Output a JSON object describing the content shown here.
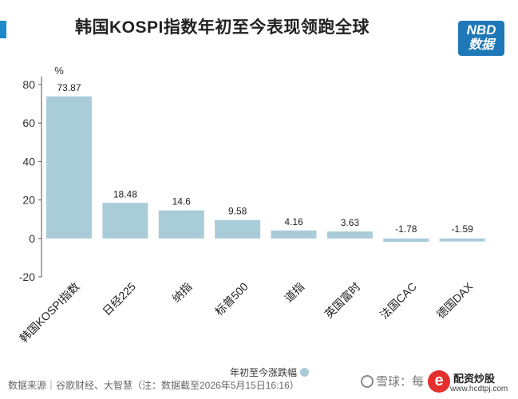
{
  "title": "韩国KOSPI指数年初至今表现领跑全球",
  "logo": {
    "line1": "NBD",
    "line2": "数据"
  },
  "chart_data": {
    "type": "bar",
    "title": "韩国KOSPI指数年初至今表现领跑全球",
    "unit": "%",
    "categories": [
      "韩国KOSPI指数",
      "日经225",
      "纳指",
      "标普500",
      "道指",
      "英国富时",
      "法国CAC",
      "德国DAX"
    ],
    "series": [
      {
        "name": "年初至今涨跌幅",
        "values": [
          73.87,
          18.48,
          14.6,
          9.58,
          4.16,
          3.63,
          -1.78,
          -1.59
        ],
        "labels": [
          "73.87",
          "18.48",
          "14.6",
          "9.58",
          "4.16",
          "3.63",
          "-1.78",
          "-1.59"
        ]
      }
    ],
    "ylim": [
      -20,
      80
    ],
    "yticks": [
      -20,
      0,
      20,
      40,
      60,
      80
    ],
    "bar_color": "#a9ccd9",
    "grid": false,
    "legend_position": "bottom"
  },
  "source": "数据来源｜谷歌财经、大智慧（注：数据截至2026年5月15日16:16）",
  "watermark": "雪球：每",
  "brand": {
    "badge": "e",
    "name": "配资炒股",
    "url": "www.hcdtpj.com"
  }
}
